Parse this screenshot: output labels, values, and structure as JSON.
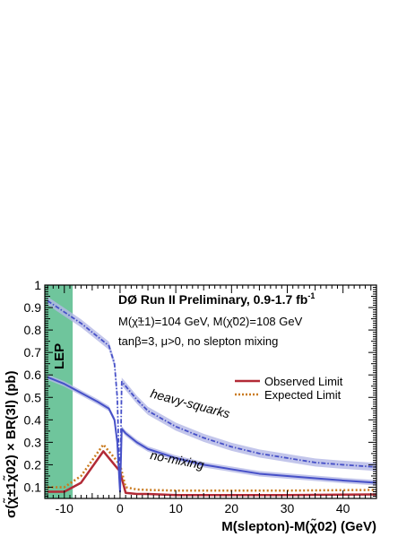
{
  "chart_data": {
    "type": "line",
    "title": "DØ Run II Preliminary, 0.9-1.7 fb",
    "title_superscript": "-1",
    "annotations": {
      "masses": "M(χ̃±1)=104 GeV, M(χ̃02)=108 GeV",
      "params": "tanβ=3, μ>0, no slepton mixing",
      "lep_band_label": "LEP",
      "heavy_squarks_label": "heavy-squarks",
      "no_mixing_label": "no-mixing"
    },
    "xlabel": "M(slepton)-M(χ̃02) (GeV)",
    "ylabel": "σ(χ̃±1χ̃02) × BR(3l) (pb)",
    "xlim": [
      -13.5,
      46
    ],
    "ylim": [
      0.05,
      1.0
    ],
    "x_ticks": [
      -10,
      0,
      10,
      20,
      30,
      40
    ],
    "x_tick_labels": [
      "-10",
      "0",
      "10",
      "20",
      "30",
      "40"
    ],
    "y_ticks": [
      0.1,
      0.2,
      0.3,
      0.4,
      0.5,
      0.6,
      0.7,
      0.8,
      0.9,
      1.0
    ],
    "y_tick_labels": [
      "0.1",
      "0.2",
      "0.3",
      "0.4",
      "0.5",
      "0.6",
      "0.7",
      "0.8",
      "0.9",
      "1"
    ],
    "lep_excluded_region": [
      -13.5,
      -8.5
    ],
    "legend": {
      "position": "center-right",
      "entries": [
        "Observed Limit",
        "Expected Limit"
      ]
    },
    "series": [
      {
        "name": "Observed Limit",
        "style": "solid",
        "x": [
          -13,
          -10,
          -7,
          -3,
          0,
          1,
          3,
          5,
          10,
          20,
          30,
          40,
          46
        ],
        "values": [
          0.08,
          0.08,
          0.12,
          0.26,
          0.17,
          0.075,
          0.07,
          0.07,
          0.065,
          0.065,
          0.065,
          0.067,
          0.068
        ]
      },
      {
        "name": "Expected Limit",
        "style": "dotted",
        "x": [
          -13,
          -10,
          -7,
          -3,
          -1,
          0,
          1,
          3,
          5,
          10,
          20,
          30,
          40,
          46
        ],
        "values": [
          0.1,
          0.1,
          0.15,
          0.29,
          0.23,
          0.2,
          0.1,
          0.09,
          0.088,
          0.085,
          0.085,
          0.085,
          0.087,
          0.088
        ]
      },
      {
        "x": [
          -13,
          -10,
          -7,
          -4,
          -2,
          -1,
          -0.5,
          -0.1,
          0,
          0.3,
          1,
          3,
          5,
          10,
          15,
          20,
          25,
          30,
          35,
          40,
          46
        ],
        "values": [
          0.59,
          0.56,
          0.52,
          0.48,
          0.45,
          0.4,
          0.3,
          0.12,
          0.08,
          0.36,
          0.34,
          0.3,
          0.27,
          0.23,
          0.2,
          0.18,
          0.16,
          0.15,
          0.14,
          0.13,
          0.12
        ],
        "band": 0.012,
        "style": "solid"
      },
      {
        "x": [
          -13,
          -10,
          -7,
          -4,
          -2,
          -1,
          -0.5,
          -0.1,
          0,
          0.3,
          1,
          3,
          5,
          10,
          15,
          20,
          25,
          30,
          35,
          40,
          46
        ],
        "values": [
          0.93,
          0.88,
          0.83,
          0.77,
          0.73,
          0.65,
          0.5,
          0.15,
          0.1,
          0.57,
          0.55,
          0.49,
          0.44,
          0.37,
          0.32,
          0.28,
          0.25,
          0.23,
          0.21,
          0.2,
          0.19
        ],
        "band": 0.018,
        "style": "dashdot"
      }
    ]
  },
  "colors": {
    "observed": "#b22a36",
    "expected": "#c97a1e",
    "theory_line": "#4650c8",
    "theory_band": "#b4b8e6",
    "lep_band": "#6fc59c"
  }
}
